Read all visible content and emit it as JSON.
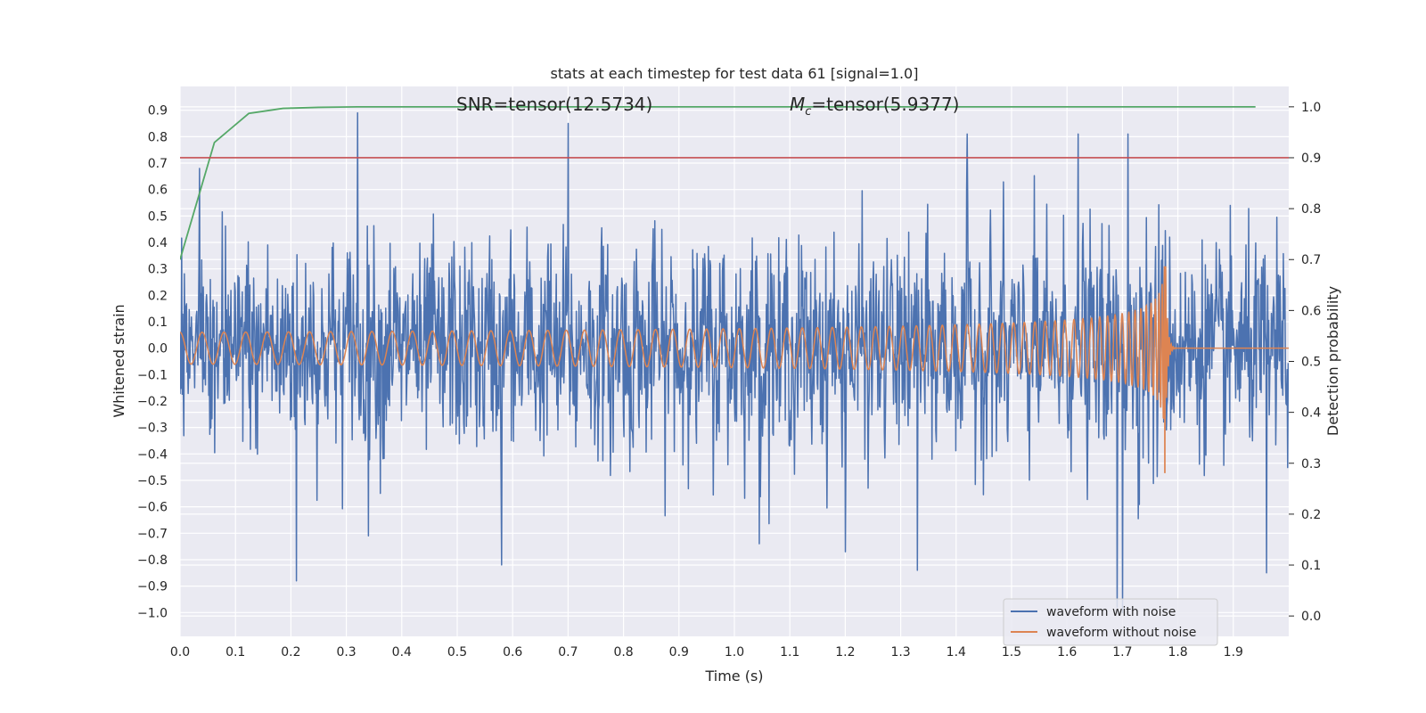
{
  "chart_data": {
    "type": "line",
    "title": "stats at each timestep for test data 61 [signal=1.0]",
    "xlabel": "Time (s)",
    "ylabel": "Whitened strain",
    "y2label": "Detection probability",
    "xlim": [
      0.0,
      2.0
    ],
    "ylim": [
      -1.09,
      0.99
    ],
    "y2lim": [
      -0.04,
      1.04
    ],
    "x_ticks": [
      "0.0",
      "0.1",
      "0.2",
      "0.3",
      "0.4",
      "0.5",
      "0.6",
      "0.7",
      "0.8",
      "0.9",
      "1.0",
      "1.1",
      "1.2",
      "1.3",
      "1.4",
      "1.5",
      "1.6",
      "1.7",
      "1.8",
      "1.9"
    ],
    "y_ticks": [
      "0.9",
      "0.8",
      "0.7",
      "0.6",
      "0.5",
      "0.4",
      "0.3",
      "0.2",
      "0.1",
      "0.0",
      "−0.1",
      "−0.2",
      "−0.3",
      "−0.4",
      "−0.5",
      "−0.6",
      "−0.7",
      "−0.8",
      "−0.9",
      "−1.0"
    ],
    "y2_ticks": [
      "1.0",
      "0.9",
      "0.8",
      "0.7",
      "0.6",
      "0.5",
      "0.4",
      "0.3",
      "0.2",
      "0.1",
      "0.0"
    ],
    "grid": true,
    "annotations": {
      "snr": "SNR=tensor(12.5734)",
      "mc_symbol": "M",
      "mc_subscript": "c",
      "mc_value": "=tensor(5.9377)"
    },
    "legend": {
      "placement": "lower-right",
      "entries": [
        "waveform with noise",
        "waveform without noise"
      ]
    },
    "series": [
      {
        "name": "waveform with noise",
        "axis": "left",
        "color": "#4c72b0",
        "style": "noise",
        "x_range": [
          0.0,
          2.0
        ],
        "amplitude_typical": 0.45,
        "peaks": [
          {
            "x": 0.035,
            "y": 0.68
          },
          {
            "x": 0.21,
            "y": -0.88
          },
          {
            "x": 0.32,
            "y": 0.89
          },
          {
            "x": 0.34,
            "y": -0.71
          },
          {
            "x": 0.58,
            "y": -0.82
          },
          {
            "x": 0.7,
            "y": 0.85
          },
          {
            "x": 1.045,
            "y": -0.74
          },
          {
            "x": 1.2,
            "y": -0.77
          },
          {
            "x": 1.33,
            "y": -0.84
          },
          {
            "x": 1.42,
            "y": 0.81
          },
          {
            "x": 1.62,
            "y": 0.81
          },
          {
            "x": 1.69,
            "y": -0.98
          },
          {
            "x": 1.7,
            "y": -1.0
          },
          {
            "x": 1.71,
            "y": 0.81
          },
          {
            "x": 1.96,
            "y": -0.85
          }
        ]
      },
      {
        "name": "waveform without noise",
        "axis": "left",
        "color": "#dd8452",
        "style": "chirp",
        "x_range": [
          0.0,
          2.0
        ],
        "f_start_hz": 25,
        "merger_time": 1.778,
        "amp_start": 0.06,
        "amp_peak": 0.31,
        "amp_min": -0.47,
        "post_merger_value": 0.0
      },
      {
        "name": "detection probability",
        "axis": "right",
        "color": "#55a868",
        "style": "line",
        "x": [
          0.0,
          0.062,
          0.124,
          0.186,
          0.25,
          0.32,
          1.0,
          1.5,
          1.94
        ],
        "y": [
          0.7,
          0.93,
          0.987,
          0.997,
          0.999,
          1.0,
          1.0,
          1.0,
          1.0
        ]
      },
      {
        "name": "threshold",
        "axis": "right",
        "color": "#c44e52",
        "style": "hline",
        "y": 0.9
      }
    ]
  }
}
